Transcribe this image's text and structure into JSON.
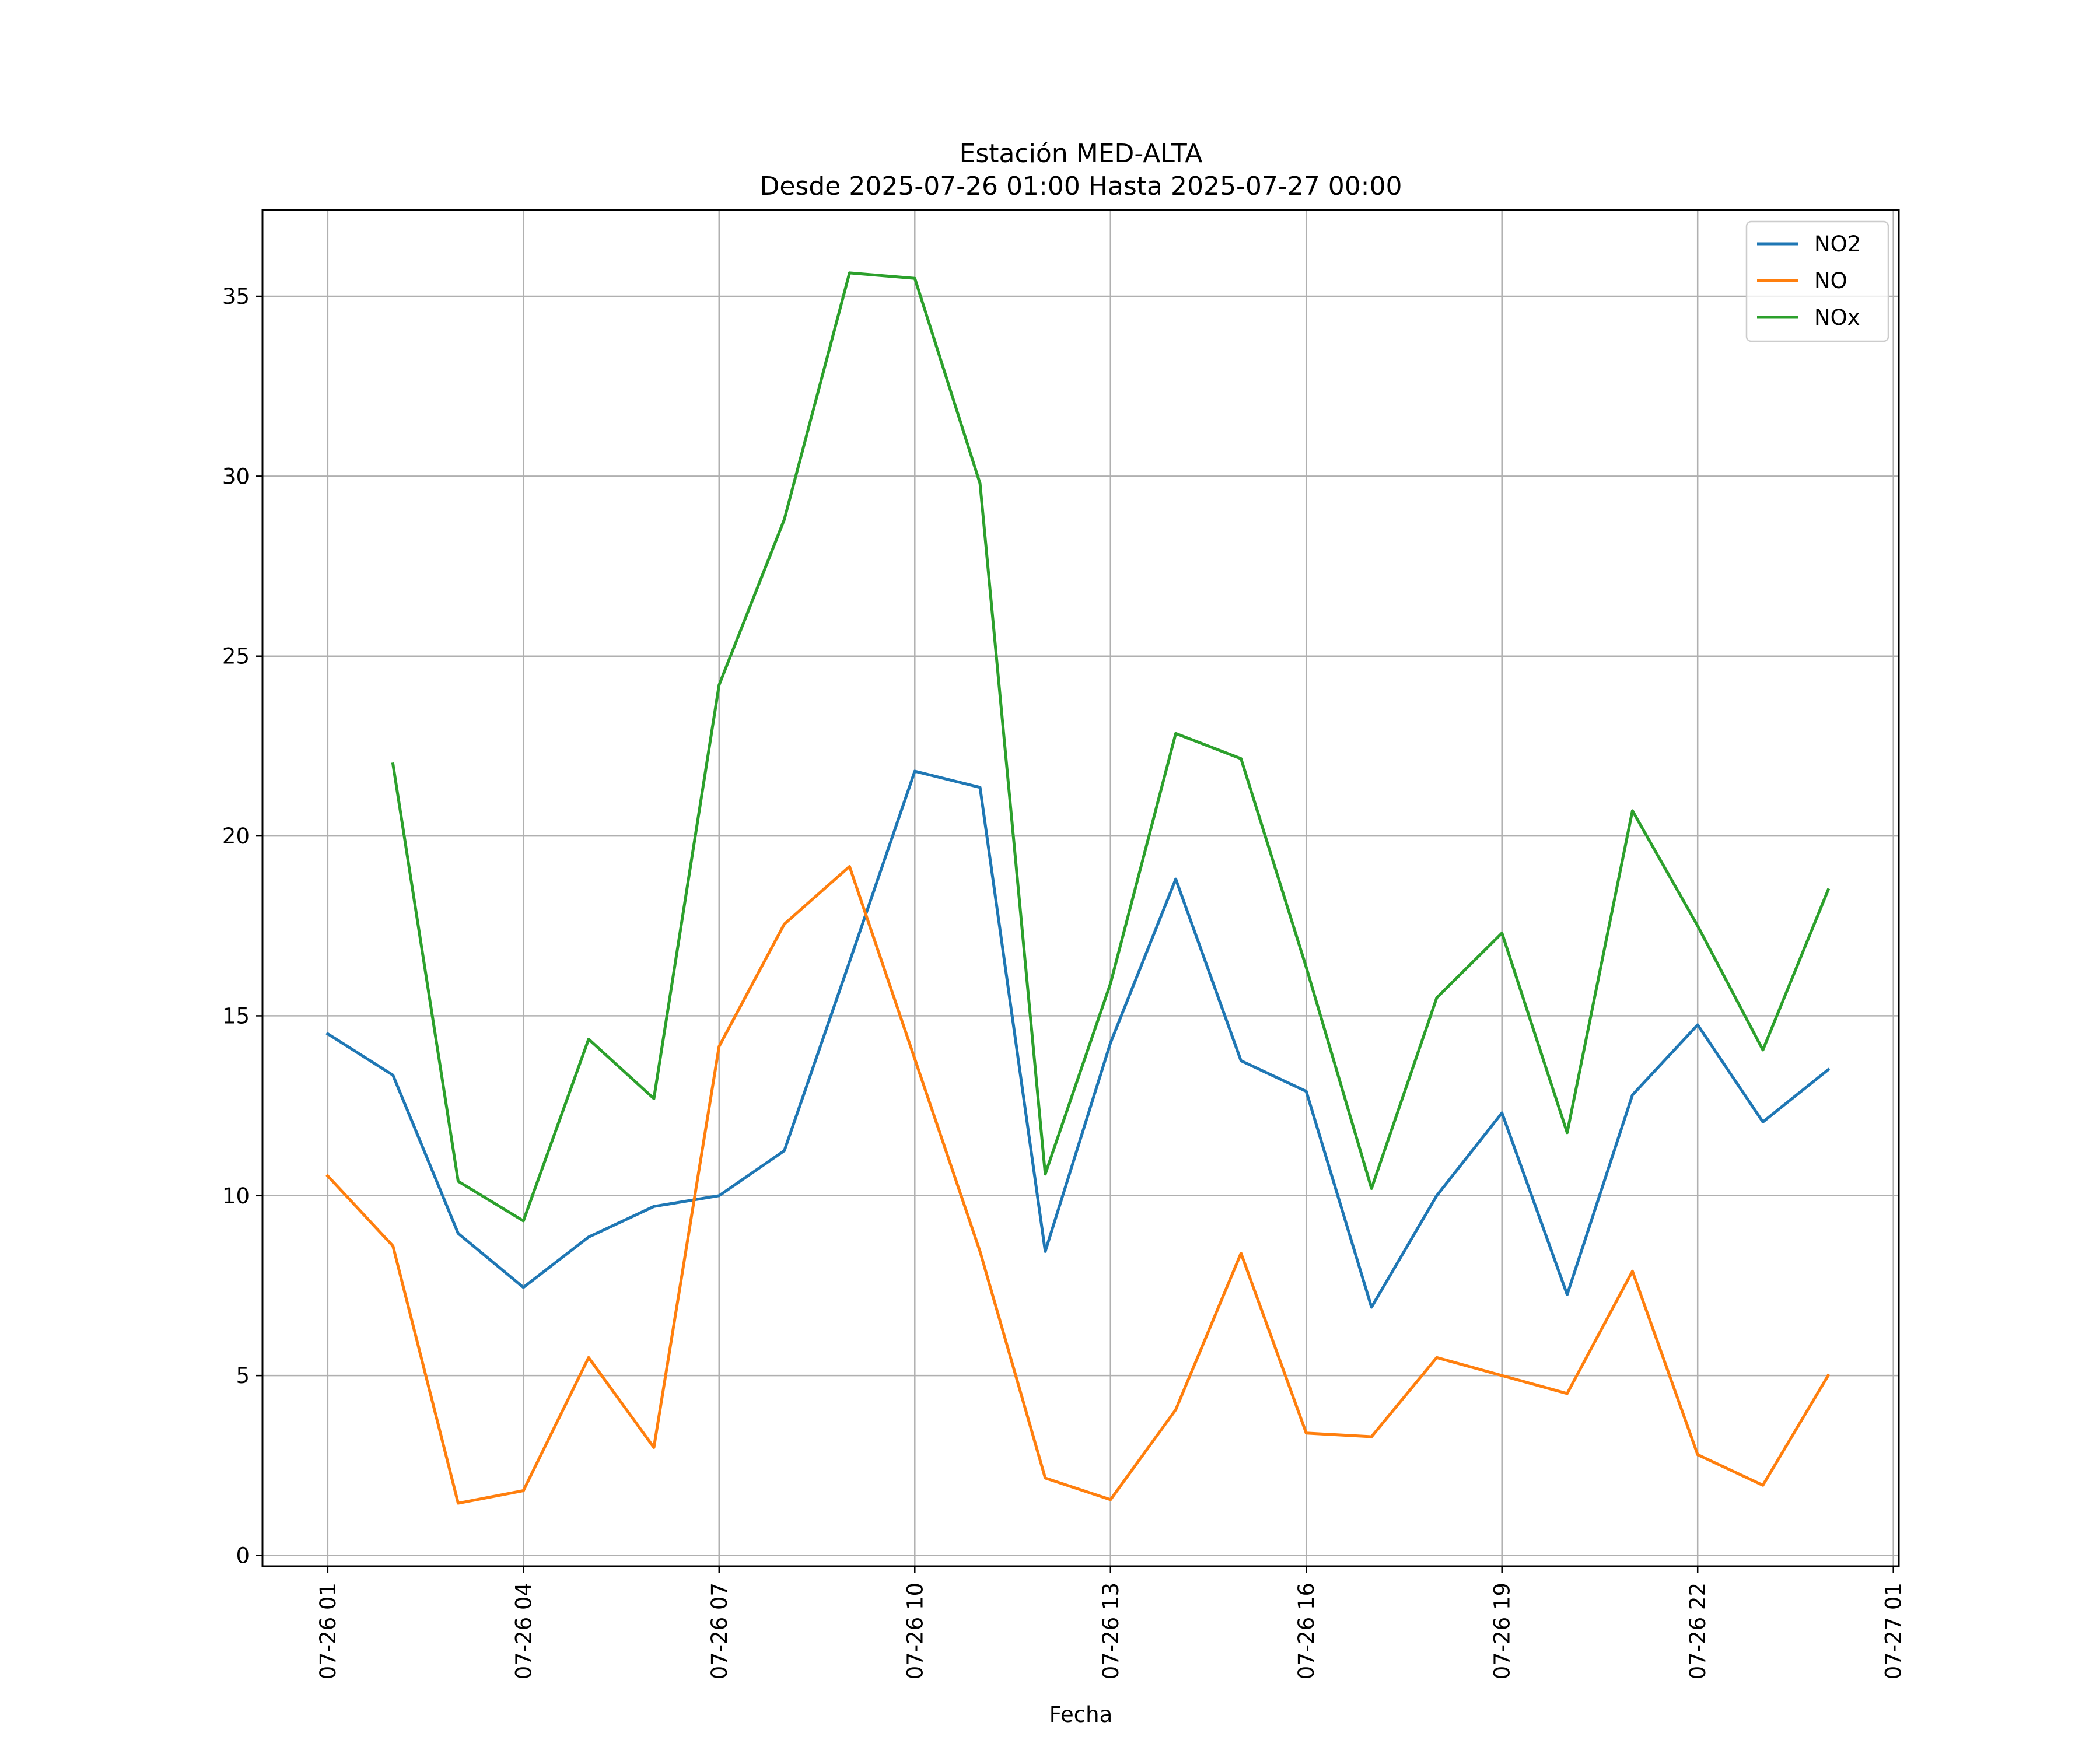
{
  "chart_data": {
    "type": "line",
    "title": "Estación MED-ALTA",
    "subtitle": "Desde 2025-07-26 01:00 Hasta 2025-07-27 00:00",
    "xlabel": "Fecha",
    "ylabel": "",
    "x_tick_labels": [
      "07-26 01",
      "07-26 04",
      "07-26 07",
      "07-26 10",
      "07-26 13",
      "07-26 16",
      "07-26 19",
      "07-26 22",
      "07-27 01"
    ],
    "y_tick_labels": [
      "0",
      "5",
      "10",
      "15",
      "20",
      "25",
      "30",
      "35"
    ],
    "ylim": [
      -0.3,
      37.4
    ],
    "x": [
      "2025-07-26 01:00",
      "2025-07-26 02:00",
      "2025-07-26 03:00",
      "2025-07-26 04:00",
      "2025-07-26 05:00",
      "2025-07-26 06:00",
      "2025-07-26 07:00",
      "2025-07-26 08:00",
      "2025-07-26 09:00",
      "2025-07-26 10:00",
      "2025-07-26 11:00",
      "2025-07-26 12:00",
      "2025-07-26 13:00",
      "2025-07-26 14:00",
      "2025-07-26 15:00",
      "2025-07-26 16:00",
      "2025-07-26 17:00",
      "2025-07-26 18:00",
      "2025-07-26 19:00",
      "2025-07-26 20:00",
      "2025-07-26 21:00",
      "2025-07-26 22:00",
      "2025-07-26 23:00",
      "2025-07-27 00:00"
    ],
    "xlim": [
      "2025-07-26 00:00",
      "2025-07-27 01:05"
    ],
    "series": [
      {
        "name": "NO2",
        "color": "#1f77b4",
        "values": [
          14.5,
          13.35,
          8.95,
          7.45,
          8.85,
          9.7,
          10.0,
          11.25,
          16.5,
          21.8,
          21.35,
          8.45,
          14.25,
          18.8,
          13.75,
          12.9,
          6.9,
          10.0,
          12.3,
          7.25,
          12.8,
          14.75,
          12.05,
          13.5
        ]
      },
      {
        "name": "NO",
        "color": "#ff7f0e",
        "values": [
          10.55,
          8.6,
          1.45,
          1.8,
          5.5,
          3.0,
          14.15,
          17.55,
          19.15,
          13.8,
          8.45,
          2.15,
          1.55,
          4.05,
          8.4,
          3.4,
          3.3,
          5.5,
          5.0,
          4.5,
          7.9,
          2.8,
          1.95,
          5.0
        ]
      },
      {
        "name": "NOx",
        "color": "#2ca02c",
        "values": [
          null,
          22.0,
          10.4,
          9.3,
          14.35,
          12.7,
          24.2,
          28.8,
          35.65,
          35.5,
          29.8,
          10.6,
          15.9,
          22.85,
          22.15,
          16.35,
          10.2,
          15.5,
          17.3,
          11.75,
          20.7,
          17.5,
          14.05,
          18.5
        ]
      }
    ],
    "grid": true,
    "legend_position": "top-right"
  }
}
